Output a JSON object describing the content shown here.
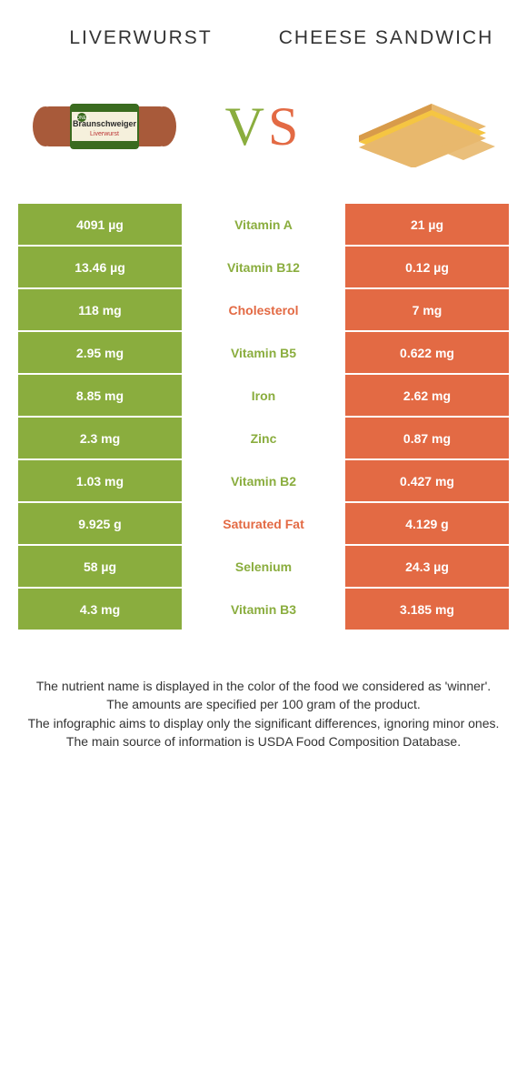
{
  "header": {
    "left_title": "LIVERWURST",
    "right_title": "CHEESE SANDWICH",
    "vs_text": "VS"
  },
  "colors": {
    "left_bg": "#8aad3e",
    "right_bg": "#e36a44",
    "vs_left": "#8aad3e",
    "vs_right": "#e36a44"
  },
  "rows": [
    {
      "left": "4091 µg",
      "mid": "Vitamin A",
      "right": "21 µg",
      "winner": "left"
    },
    {
      "left": "13.46 µg",
      "mid": "Vitamin B12",
      "right": "0.12 µg",
      "winner": "left"
    },
    {
      "left": "118 mg",
      "mid": "Cholesterol",
      "right": "7 mg",
      "winner": "right"
    },
    {
      "left": "2.95 mg",
      "mid": "Vitamin B5",
      "right": "0.622 mg",
      "winner": "left"
    },
    {
      "left": "8.85 mg",
      "mid": "Iron",
      "right": "2.62 mg",
      "winner": "left"
    },
    {
      "left": "2.3 mg",
      "mid": "Zinc",
      "right": "0.87 mg",
      "winner": "left"
    },
    {
      "left": "1.03 mg",
      "mid": "Vitamin B2",
      "right": "0.427 mg",
      "winner": "left"
    },
    {
      "left": "9.925 g",
      "mid": "Saturated Fat",
      "right": "4.129 g",
      "winner": "right"
    },
    {
      "left": "58 µg",
      "mid": "Selenium",
      "right": "24.3 µg",
      "winner": "left"
    },
    {
      "left": "4.3 mg",
      "mid": "Vitamin B3",
      "right": "3.185 mg",
      "winner": "left"
    }
  ],
  "footnotes": [
    "The nutrient name is displayed in the color of the food we considered as 'winner'.",
    "The amounts are specified per 100 gram of the product.",
    "The infographic aims to display only the significant differences, ignoring minor ones.",
    "The main source of information is USDA Food Composition Database."
  ]
}
